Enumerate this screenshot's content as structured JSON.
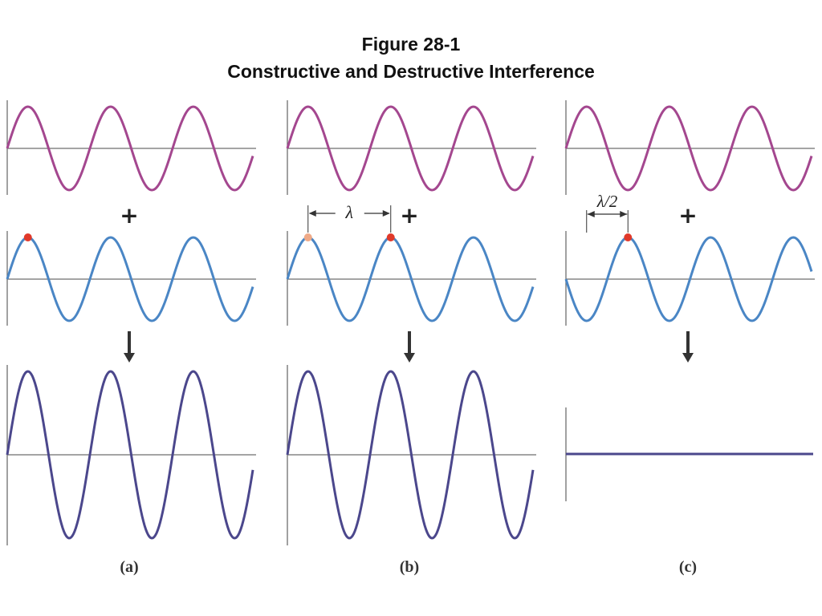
{
  "figure": {
    "title_line_1": "Figure 28-1",
    "title_line_2": "Constructive and Destructive Interference"
  },
  "colors": {
    "top_wave": "#a4478f",
    "middle_wave": "#4a86c5",
    "result_wave": "#4b478c",
    "axis": "#6e6e6e",
    "marker_red": "#e0392a",
    "marker_light": "#efaa88",
    "arrow": "#333333"
  },
  "symbols": {
    "plus": "+",
    "wavelength": "λ",
    "half_wavelength": "λ/2"
  },
  "panels": [
    {
      "label": "(a)",
      "phase_shift": "0",
      "result": "constructive"
    },
    {
      "label": "(b)",
      "phase_shift": "λ",
      "result": "constructive"
    },
    {
      "label": "(c)",
      "phase_shift": "λ/2",
      "result": "destructive"
    }
  ]
}
